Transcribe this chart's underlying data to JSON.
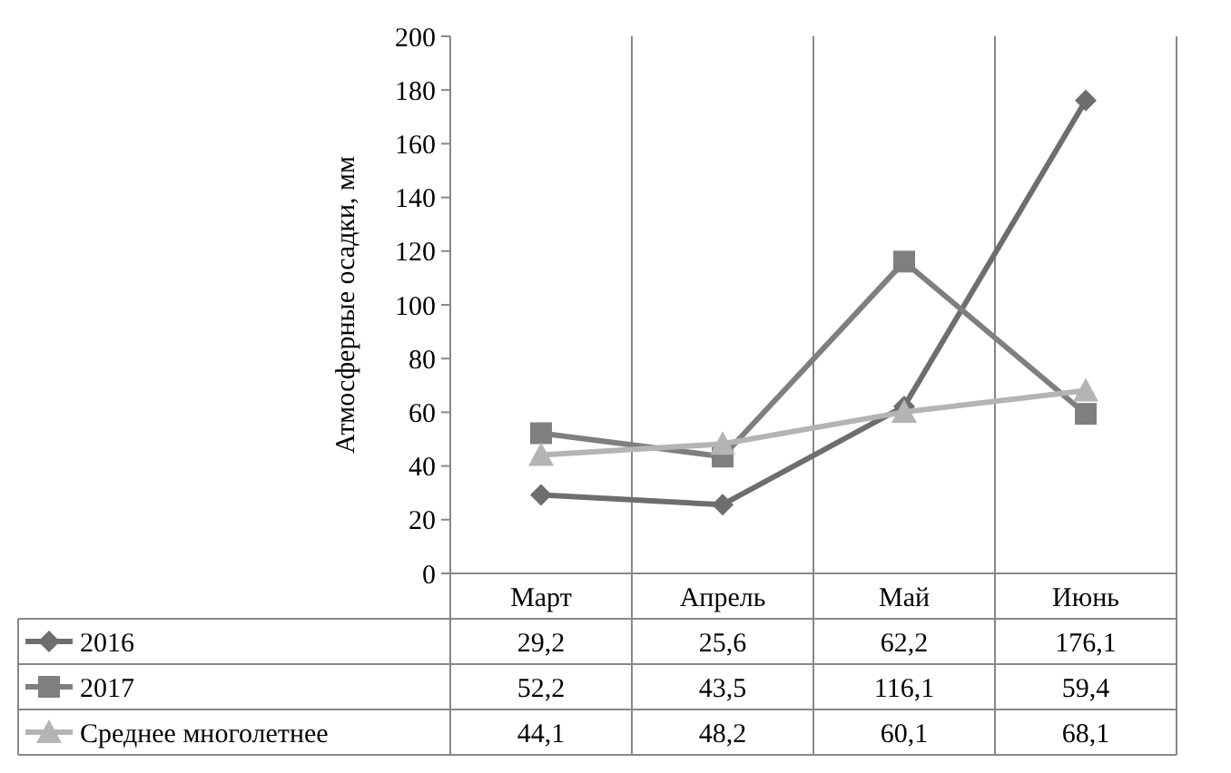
{
  "chart_data": {
    "type": "line",
    "ylabel": "Атмосферные осадки, мм",
    "categories": [
      "Март",
      "Апрель",
      "Май",
      "Июнь"
    ],
    "ylim": [
      0,
      200
    ],
    "yticks": [
      0,
      20,
      40,
      60,
      80,
      100,
      120,
      140,
      160,
      180,
      200
    ],
    "grid": "x",
    "legend": "bottom",
    "series": [
      {
        "name": "2016",
        "color": "#6e6e6e",
        "marker": "diamond",
        "values": [
          29.2,
          25.6,
          62.2,
          176.1
        ],
        "value_labels": [
          "29,2",
          "25,6",
          "62,2",
          "176,1"
        ]
      },
      {
        "name": "2017",
        "color": "#7f7f7f",
        "marker": "square",
        "values": [
          52.2,
          43.5,
          116.1,
          59.4
        ],
        "value_labels": [
          "52,2",
          "43,5",
          "116,1",
          "59,4"
        ]
      },
      {
        "name": "Среднее многолетнее",
        "color": "#b4b4b4",
        "marker": "triangle",
        "values": [
          44.1,
          48.2,
          60.1,
          68.1
        ],
        "value_labels": [
          "44,1",
          "48,2",
          "60,1",
          "68,1"
        ]
      }
    ]
  }
}
